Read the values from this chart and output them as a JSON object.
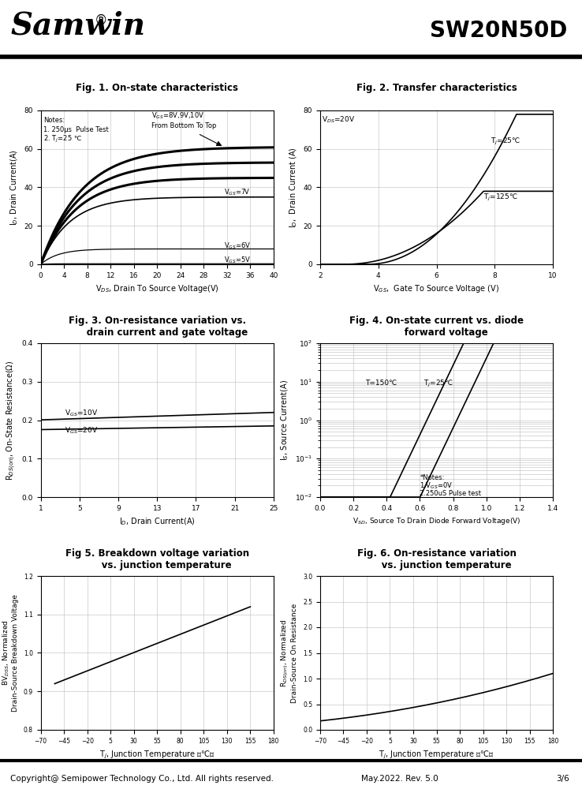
{
  "title_left": "Samwin",
  "title_right": "SW20N50D",
  "footer_left": "Copyright@ Semipower Technology Co., Ltd. All rights reserved.",
  "footer_mid": "May.2022. Rev. 5.0",
  "footer_right": "3/6",
  "fig1_title": "Fig. 1. On-state characteristics",
  "fig1_xlabel": "V$_{DS}$, Drain To Source Voltage(V)",
  "fig1_ylabel": "I$_D$, Drain Current(A)",
  "fig1_xlim": [
    0,
    40
  ],
  "fig1_ylim": [
    0,
    80
  ],
  "fig1_xticks": [
    0,
    4,
    8,
    12,
    16,
    20,
    24,
    28,
    32,
    36,
    40
  ],
  "fig1_yticks": [
    0,
    20,
    40,
    60,
    80
  ],
  "fig2_title": "Fig. 2. Transfer characteristics",
  "fig2_xlabel": "V$_{GS}$,  Gate To Source Voltage (V)",
  "fig2_ylabel": "I$_D$,  Drain Current (A)",
  "fig2_xlim": [
    2,
    10
  ],
  "fig2_ylim": [
    0,
    80
  ],
  "fig2_xticks": [
    2,
    4,
    6,
    8,
    10
  ],
  "fig2_yticks": [
    0,
    20,
    40,
    60,
    80
  ],
  "fig3_title": "Fig. 3. On-resistance variation vs.\n      drain current and gate voltage",
  "fig3_xlabel": "I$_D$, Drain Current(A)",
  "fig3_ylabel": "R$_{DS(on)}$, On-State Resistance(Ω)",
  "fig3_xlim": [
    1,
    25
  ],
  "fig3_ylim": [
    0.0,
    0.4
  ],
  "fig3_xticks": [
    1,
    5,
    9,
    13,
    17,
    21,
    25
  ],
  "fig3_yticks": [
    0.0,
    0.1,
    0.2,
    0.3,
    0.4
  ],
  "fig4_title": "Fig. 4. On-state current vs. diode\n      forward voltage",
  "fig4_xlabel": "V$_{SD}$, Source To Drain Diode Forward Voltage(V)",
  "fig4_ylabel": "I$_S$, Source Current(A)",
  "fig4_xlim": [
    0.0,
    1.4
  ],
  "fig4_xticks": [
    0.0,
    0.2,
    0.4,
    0.6,
    0.8,
    1.0,
    1.2,
    1.4
  ],
  "fig5_title": "Fig 5. Breakdown voltage variation\n      vs. junction temperature",
  "fig5_xlabel": "T$_j$, Junction Temperature （℃）",
  "fig5_ylabel": "BV$_{DSS}$, Normalized\nDrain-Source Breakdown Voltage",
  "fig5_xlim": [
    -70,
    180
  ],
  "fig5_ylim": [
    0.8,
    1.2
  ],
  "fig5_xticks": [
    -70,
    -45,
    -20,
    5,
    30,
    55,
    80,
    105,
    130,
    155,
    180
  ],
  "fig5_yticks": [
    0.8,
    0.9,
    1.0,
    1.1,
    1.2
  ],
  "fig6_title": "Fig. 6. On-resistance variation\n      vs. junction temperature",
  "fig6_xlabel": "T$_j$, Junction Temperature （℃）",
  "fig6_ylabel": "R$_{DS(on)}$, Normalized\nDrain-Source On Resistance",
  "fig6_xlim": [
    -70,
    180
  ],
  "fig6_ylim": [
    0.0,
    3.0
  ],
  "fig6_xticks": [
    -70,
    -45,
    -20,
    5,
    30,
    55,
    80,
    105,
    130,
    155,
    180
  ],
  "fig6_yticks": [
    0.0,
    0.5,
    1.0,
    1.5,
    2.0,
    2.5,
    3.0
  ],
  "bg_color": "#ffffff",
  "grid_color": "#bbbbbb",
  "line_color": "#000000"
}
